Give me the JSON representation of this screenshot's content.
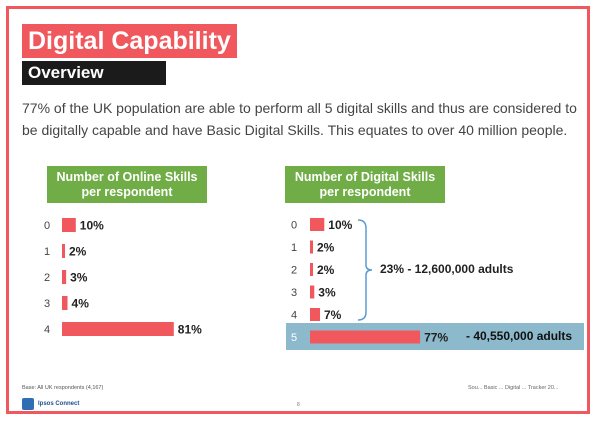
{
  "header": {
    "title": "Digital Capability",
    "subtitle": "Overview",
    "intro": "77% of the UK population are able to perform all 5 digital skills and thus are considered to be digitally capable and have Basic Digital Skills. This equates to over 40 million people."
  },
  "colors": {
    "frame": "#f0585d",
    "bar": "#f0585d",
    "panel_header": "#70ad47",
    "highlight": "#8db9cd"
  },
  "chart_data": [
    {
      "type": "bar",
      "orientation": "horizontal",
      "title": "Number of Online Skills per respondent",
      "categories": [
        "0",
        "1",
        "2",
        "3",
        "4"
      ],
      "values": [
        10,
        2,
        3,
        4,
        81
      ],
      "value_labels": [
        "10%",
        "2%",
        "3%",
        "4%",
        "81%"
      ],
      "xlim": [
        0,
        100
      ]
    },
    {
      "type": "bar",
      "orientation": "horizontal",
      "title": "Number of Digital Skills per respondent",
      "categories": [
        "0",
        "1",
        "2",
        "3",
        "4",
        "5"
      ],
      "values": [
        10,
        2,
        2,
        3,
        7,
        77
      ],
      "value_labels": [
        "10%",
        "2%",
        "2%",
        "3%",
        "7%",
        "77%"
      ],
      "xlim": [
        0,
        100
      ],
      "group_annotation": "23% - 12,600,000 adults",
      "highlight_annotation": "- 40,550,000 adults"
    }
  ],
  "footer": {
    "base": "Base: All UK respondents (4,167)",
    "source": "Sou... Basic ... Digital ... Tracker 20...",
    "page": "8",
    "logo_text": "Ipsos Connect"
  }
}
